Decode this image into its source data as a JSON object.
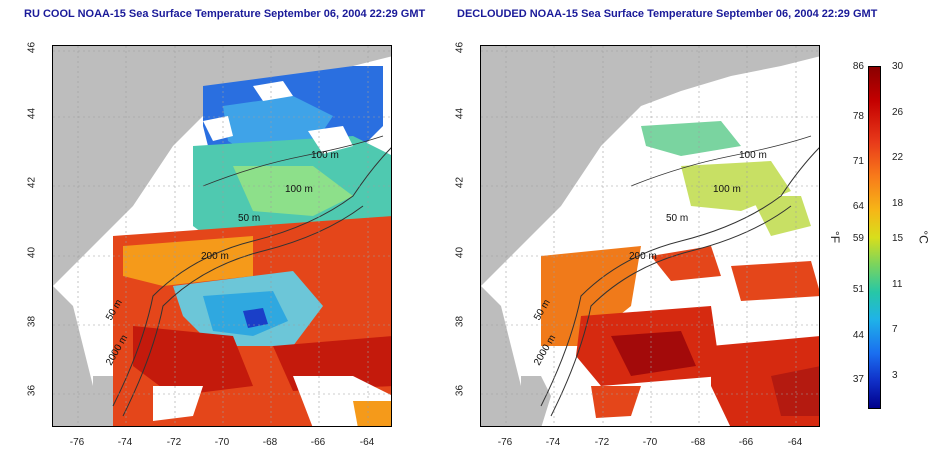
{
  "titles": {
    "left": "RU COOL NOAA-15 Sea Surface Temperature September 06, 2004 22:29 GMT",
    "right": "DECLOUDED NOAA-15 Sea Surface Temperature September 06, 2004 22:29 GMT"
  },
  "axes": {
    "lat_ticks": [
      "46",
      "44",
      "42",
      "40",
      "38",
      "36"
    ],
    "lon_ticks": [
      "-76",
      "-74",
      "-72",
      "-70",
      "-68",
      "-66",
      "-64"
    ]
  },
  "contour_labels": {
    "left": [
      "100 m",
      "100 m",
      "50 m",
      "200 m",
      "50 m",
      "2000 m"
    ],
    "right": [
      "100 m",
      "100 m",
      "50 m",
      "200 m",
      "50 m",
      "2000 m"
    ]
  },
  "colorbar": {
    "fahrenheit_ticks": [
      "86",
      "78",
      "71",
      "64",
      "59",
      "51",
      "44",
      "37"
    ],
    "celsius_ticks": [
      "30",
      "26",
      "22",
      "18",
      "15",
      "11",
      "7",
      "3"
    ],
    "unit_f": "°F",
    "unit_c": "°C"
  },
  "colors": {
    "land": "#bdbdbd",
    "cloud": "#ffffff",
    "warm": "#d62a10",
    "hot": "#9c0a0a",
    "mid": "#f0a020",
    "cool": "#50d890",
    "cold": "#1e6be0",
    "title": "#1a1a99"
  }
}
